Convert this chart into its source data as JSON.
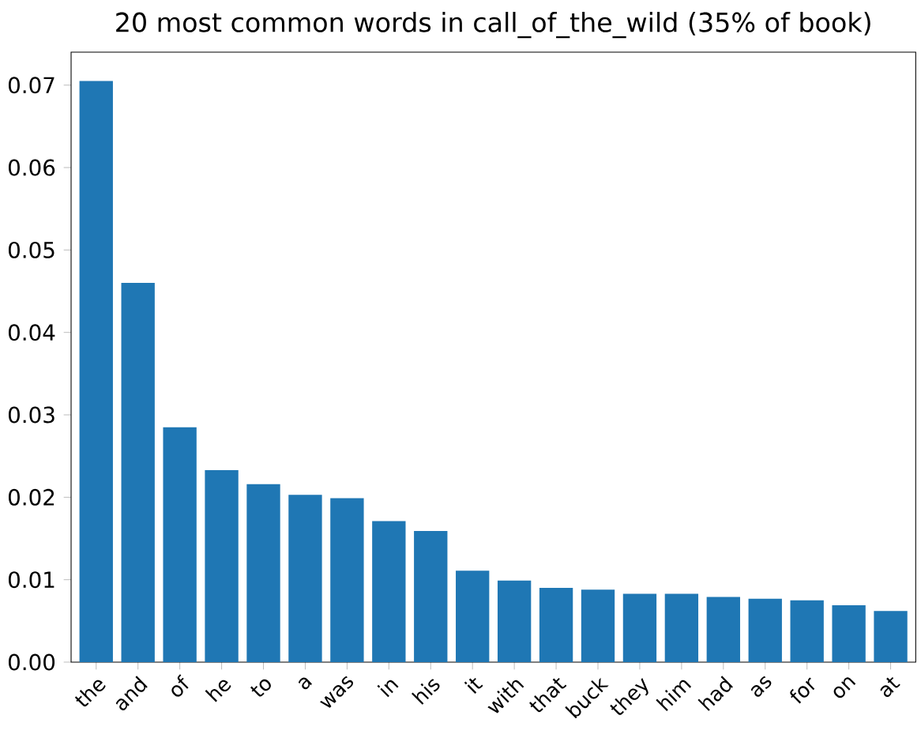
{
  "chart_data": {
    "type": "bar",
    "title": "20 most common words in call_of_the_wild (35% of book)",
    "categories": [
      "the",
      "and",
      "of",
      "he",
      "to",
      "a",
      "was",
      "in",
      "his",
      "it",
      "with",
      "that",
      "buck",
      "they",
      "him",
      "had",
      "as",
      "for",
      "on",
      "at"
    ],
    "values": [
      0.0705,
      0.046,
      0.0285,
      0.0233,
      0.0216,
      0.0203,
      0.0199,
      0.0171,
      0.0159,
      0.0111,
      0.0099,
      0.009,
      0.0088,
      0.0083,
      0.0083,
      0.0079,
      0.0077,
      0.0075,
      0.0069,
      0.0062
    ],
    "color": "#1f77b4",
    "ylim": [
      0,
      0.074
    ],
    "yticks": [
      {
        "value": 0,
        "label": "0.00"
      },
      {
        "value": 0.01,
        "label": "0.01"
      },
      {
        "value": 0.02,
        "label": "0.02"
      },
      {
        "value": 0.03,
        "label": "0.03"
      },
      {
        "value": 0.04,
        "label": "0.04"
      },
      {
        "value": 0.05,
        "label": "0.05"
      },
      {
        "value": 0.06,
        "label": "0.06"
      },
      {
        "value": 0.07,
        "label": "0.07"
      }
    ]
  }
}
